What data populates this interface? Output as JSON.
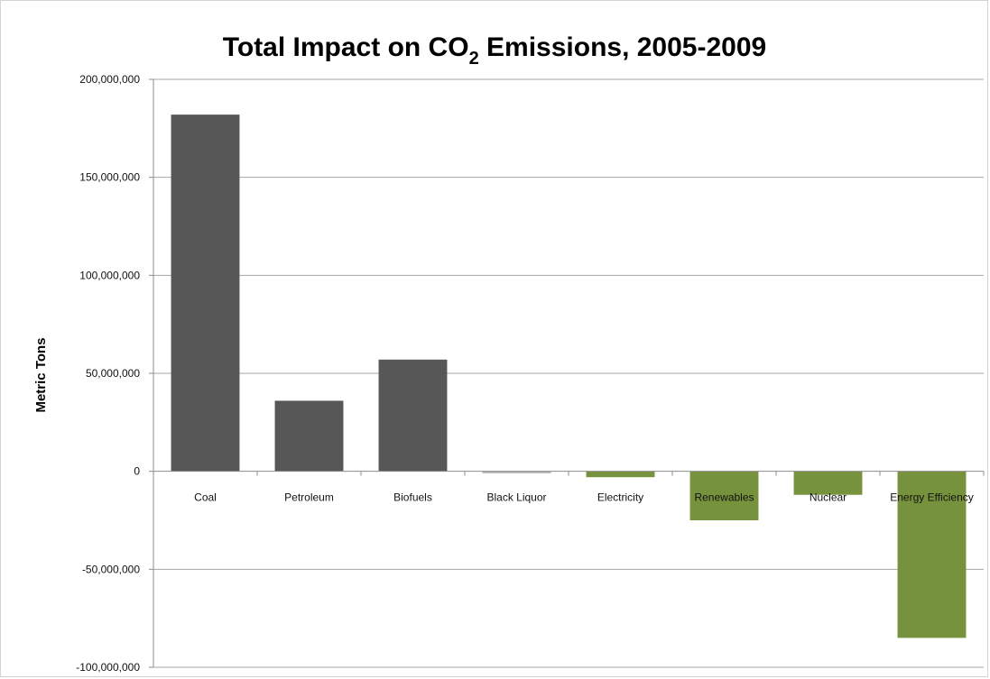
{
  "chart_data": {
    "type": "bar",
    "title": "Total Impact on CO",
    "title_subscript": "2",
    "title_suffix": " Emissions, 2005-2009",
    "xlabel": "",
    "ylabel": "Metric Tons",
    "ylim": [
      -100000000,
      200000000
    ],
    "yticks": [
      200000000,
      150000000,
      100000000,
      50000000,
      0,
      -50000000,
      -100000000
    ],
    "ytick_labels": [
      "200,000,000",
      "150,000,000",
      "100,000,000",
      "50,000,000",
      "0",
      "-50,000,000",
      "-100,000,000"
    ],
    "categories": [
      "Coal",
      "Petroleum",
      "Biofuels",
      "Black Liquor",
      "Electricity",
      "Renewables",
      "Nuclear",
      "Energy Efficiency"
    ],
    "values": [
      182000000,
      36000000,
      57000000,
      -1000000,
      -3000000,
      -25000000,
      -12000000,
      -85000000
    ],
    "bar_colors": [
      "#575757",
      "#575757",
      "#575757",
      "#b3b3b3",
      "#77923c",
      "#77923c",
      "#77923c",
      "#77923c"
    ],
    "grid": true,
    "gridline_color": "#a6a6a6",
    "legend": "none"
  }
}
